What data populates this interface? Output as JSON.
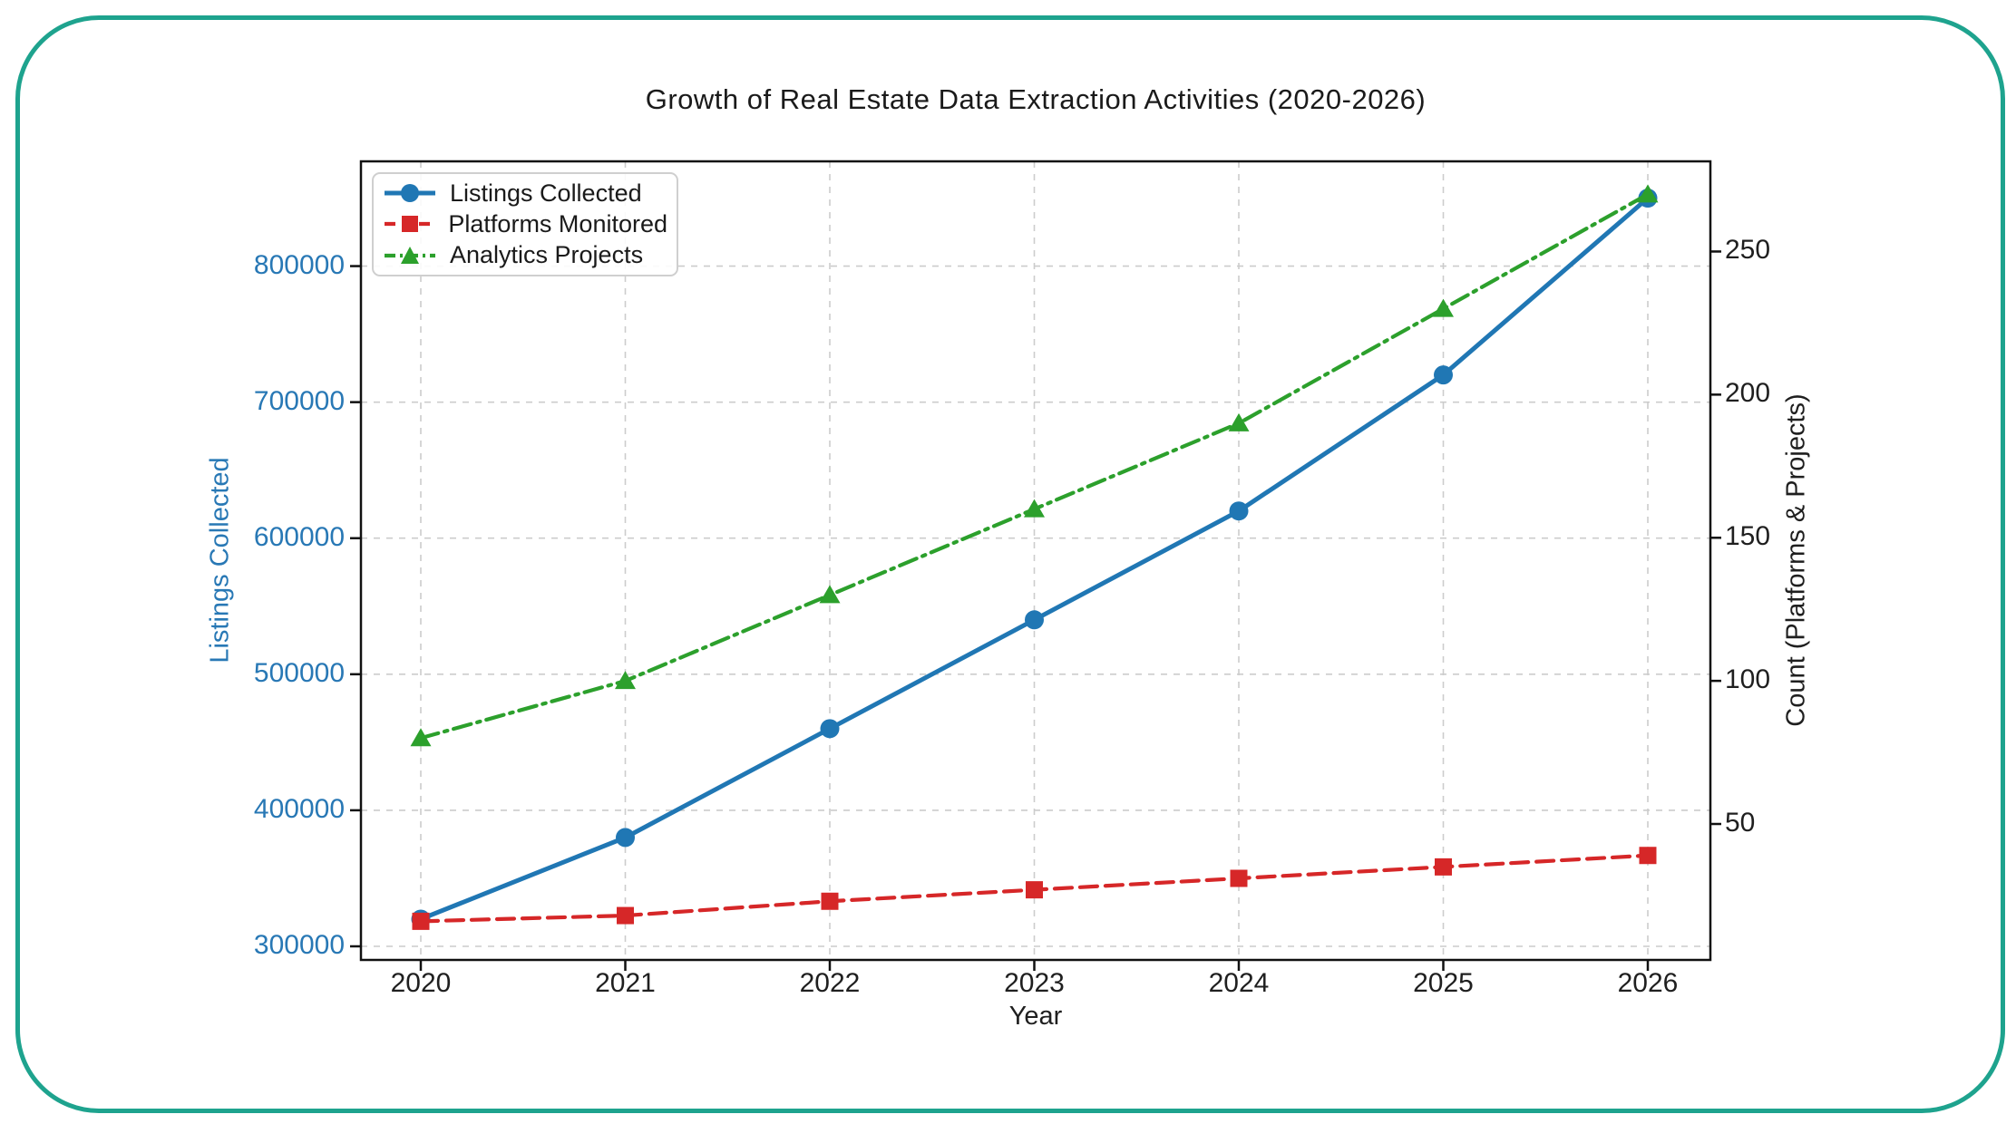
{
  "frame": {
    "border_color": "#1ea38e"
  },
  "chart_data": {
    "type": "line",
    "title": "Growth of Real Estate Data Extraction Activities (2020-2026)",
    "xlabel": "Year",
    "ylabel_left": "Listings Collected",
    "ylabel_right": "Count (Platforms & Projects)",
    "categories": [
      "2020",
      "2021",
      "2022",
      "2023",
      "2024",
      "2025",
      "2026"
    ],
    "series": [
      {
        "name": "Listings Collected",
        "axis": "left",
        "color": "#2077b4",
        "line_style": "solid",
        "marker": "circle",
        "values": [
          320000,
          380000,
          460000,
          540000,
          620000,
          720000,
          850000
        ]
      },
      {
        "name": "Platforms Monitored",
        "axis": "right",
        "color": "#d62728",
        "line_style": "dashed",
        "marker": "square",
        "values": [
          16,
          18,
          23,
          27,
          31,
          35,
          39
        ]
      },
      {
        "name": "Analytics Projects",
        "axis": "right",
        "color": "#2ca02c",
        "line_style": "dashdot",
        "marker": "triangle",
        "values": [
          80,
          100,
          130,
          160,
          190,
          230,
          270
        ]
      }
    ],
    "left_axis": {
      "ticks": [
        300000,
        400000,
        500000,
        600000,
        700000,
        800000
      ],
      "range": [
        290000,
        877000
      ],
      "label_color": "#2878b5"
    },
    "right_axis": {
      "ticks": [
        50,
        100,
        150,
        200,
        250
      ],
      "range": [
        2.5,
        281.5
      ],
      "label_color": "#1f1f1f"
    },
    "grid": true,
    "grid_color": "#cccccc",
    "legend_position": "upper left"
  }
}
